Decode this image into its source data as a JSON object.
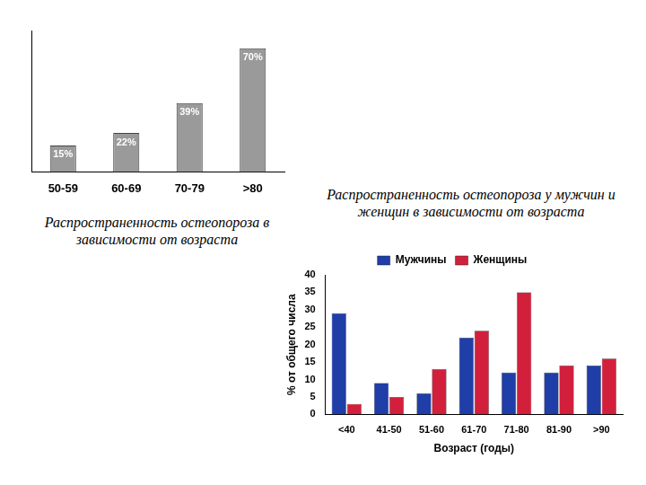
{
  "chart_data": [
    {
      "type": "bar",
      "title": "Распространенность остеопороза в зависимости от возраста",
      "categories": [
        "50-59",
        "60-69",
        "70-79",
        ">80"
      ],
      "values": [
        15,
        22,
        39,
        70
      ],
      "value_labels": [
        "15%",
        "22%",
        "39%",
        "70%"
      ],
      "color": "#9a9a9a",
      "ylim": [
        0,
        80
      ],
      "tick_labels": "x",
      "grid": false,
      "data_labels": true
    },
    {
      "type": "bar",
      "title": "Распространенность остеопороза у мужчин и женщин в зависимости от возраста",
      "x_label": "Возраст (годы)",
      "y_label": "% от общего числа",
      "categories": [
        "<40",
        "41-50",
        "51-60",
        "61-70",
        "71-80",
        "81-90",
        ">90"
      ],
      "series": [
        {
          "name": "Мужчины",
          "color": "#1f3ea8",
          "values": [
            29,
            9,
            6,
            22,
            12,
            12,
            14
          ]
        },
        {
          "name": "Женщины",
          "color": "#d2203c",
          "values": [
            3,
            5,
            13,
            24,
            35,
            14,
            16
          ]
        }
      ],
      "ylim": [
        0,
        40
      ],
      "yticks": [
        0,
        5,
        10,
        15,
        20,
        25,
        30,
        35,
        40
      ],
      "grid": false,
      "legend": "top"
    }
  ]
}
